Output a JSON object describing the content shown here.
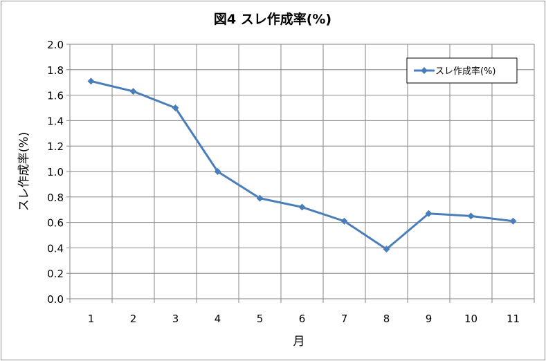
{
  "chart_data": {
    "type": "line",
    "title": "図4  スレ作成率(%)",
    "xlabel": "月",
    "ylabel": "スレ作成率(%)",
    "categories": [
      "1",
      "2",
      "3",
      "4",
      "5",
      "6",
      "7",
      "8",
      "9",
      "10",
      "11"
    ],
    "series": [
      {
        "name": "スレ作成率(%)",
        "values": [
          1.71,
          1.63,
          1.5,
          1.0,
          0.79,
          0.72,
          0.61,
          0.39,
          0.67,
          0.65,
          0.61
        ],
        "color": "#4a7ebb",
        "marker": "diamond"
      }
    ],
    "ylim": [
      0,
      2.0
    ],
    "yticks": [
      "0.0",
      "0.2",
      "0.4",
      "0.6",
      "0.8",
      "1.0",
      "1.2",
      "1.4",
      "1.6",
      "1.8",
      "2.0"
    ],
    "grid": true,
    "legend": "top-right"
  }
}
